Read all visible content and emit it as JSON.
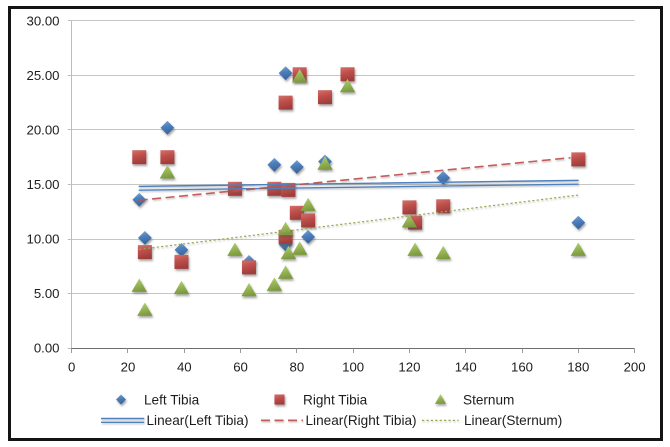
{
  "colors": {
    "left_tibia": "#4F81BD",
    "right_tibia": "#C0504D",
    "sternum": "#9BBB59",
    "gridline": "#C6C6C6",
    "y_axis_line": "#BDBDBD",
    "x_axis_line": "#6E6E6E",
    "tick": "#9A9A9A",
    "label_text": "#1D1D1D",
    "legend_text": "#1D1D1D",
    "border": "#141414",
    "background": "#FFFFFF"
  },
  "chart_data": {
    "type": "scatter",
    "title": "",
    "xlabel": "",
    "ylabel": "",
    "xlim": [
      0,
      200
    ],
    "ylim": [
      0,
      30
    ],
    "grid": true,
    "legend_position": "bottom",
    "x_tick_labels": [
      "0",
      "20",
      "40",
      "60",
      "80",
      "100",
      "120",
      "140",
      "160",
      "180",
      "200"
    ],
    "x_tick_values": [
      0,
      20,
      40,
      60,
      80,
      100,
      120,
      140,
      160,
      180,
      200
    ],
    "y_tick_labels": [
      "0.00",
      "5.00",
      "10.00",
      "15.00",
      "20.00",
      "25.00",
      "30.00"
    ],
    "y_tick_values": [
      0,
      5,
      10,
      15,
      20,
      25,
      30
    ],
    "series": [
      {
        "name": "Left Tibia",
        "marker": "diamond",
        "color": "#4F81BD",
        "points": [
          [
            24,
            13.6
          ],
          [
            26,
            10.1
          ],
          [
            34,
            20.2
          ],
          [
            39,
            9.0
          ],
          [
            63,
            7.9
          ],
          [
            72,
            16.8
          ],
          [
            76,
            25.2
          ],
          [
            76,
            9.5
          ],
          [
            80,
            16.6
          ],
          [
            84,
            10.2
          ],
          [
            90,
            17.1
          ],
          [
            132,
            15.6
          ],
          [
            180,
            11.5
          ]
        ]
      },
      {
        "name": "Right Tibia",
        "marker": "square",
        "color": "#C0504D",
        "points": [
          [
            24,
            17.5
          ],
          [
            26,
            8.8
          ],
          [
            34,
            17.5
          ],
          [
            39,
            7.9
          ],
          [
            58,
            14.6
          ],
          [
            63,
            7.4
          ],
          [
            72,
            14.6
          ],
          [
            76,
            22.5
          ],
          [
            76,
            10.2
          ],
          [
            77,
            14.5
          ],
          [
            80,
            12.4
          ],
          [
            81,
            25.1
          ],
          [
            84,
            11.7
          ],
          [
            90,
            23.0
          ],
          [
            98,
            25.1
          ],
          [
            120,
            12.9
          ],
          [
            122,
            11.5
          ],
          [
            132,
            13.0
          ],
          [
            180,
            17.3
          ]
        ]
      },
      {
        "name": "Sternum",
        "marker": "triangle",
        "color": "#9BBB59",
        "points": [
          [
            24,
            5.7
          ],
          [
            26,
            3.5
          ],
          [
            34,
            16.1
          ],
          [
            39,
            5.5
          ],
          [
            58,
            9.0
          ],
          [
            63,
            5.3
          ],
          [
            72,
            5.8
          ],
          [
            76,
            6.9
          ],
          [
            76,
            10.9
          ],
          [
            77,
            8.7
          ],
          [
            81,
            9.1
          ],
          [
            81,
            24.9
          ],
          [
            84,
            13.1
          ],
          [
            90,
            16.9
          ],
          [
            98,
            24.0
          ],
          [
            120,
            11.6
          ],
          [
            122,
            9.0
          ],
          [
            132,
            8.7
          ],
          [
            180,
            9.0
          ]
        ]
      }
    ],
    "trendlines": [
      {
        "name": "Linear(Left Tibia)",
        "style": "double-solid",
        "color": "#4F81BD",
        "from": [
          23.8,
          14.65
        ],
        "to": [
          180.1,
          15.2
        ]
      },
      {
        "name": "Linear(Right Tibia)",
        "style": "dashed",
        "color": "#C0504D",
        "from": [
          23.8,
          13.55
        ],
        "to": [
          177.2,
          17.45
        ]
      },
      {
        "name": "Linear(Sternum)",
        "style": "dotted",
        "color": "#9BBB59",
        "from": [
          24.0,
          9.05
        ],
        "to": [
          180.6,
          14.05
        ]
      }
    ],
    "legend": {
      "rows": [
        [
          {
            "label": "Left Tibia",
            "swatch": "diamond-marker"
          },
          {
            "label": "Right Tibia",
            "swatch": "square-marker"
          },
          {
            "label": "Sternum",
            "swatch": "triangle-marker"
          }
        ],
        [
          {
            "label": "Linear(Left Tibia)",
            "swatch": "double-solid-line"
          },
          {
            "label": "Linear(Right Tibia)",
            "swatch": "dashed-line"
          },
          {
            "label": "Linear(Sternum)",
            "swatch": "dotted-line"
          }
        ]
      ]
    }
  }
}
